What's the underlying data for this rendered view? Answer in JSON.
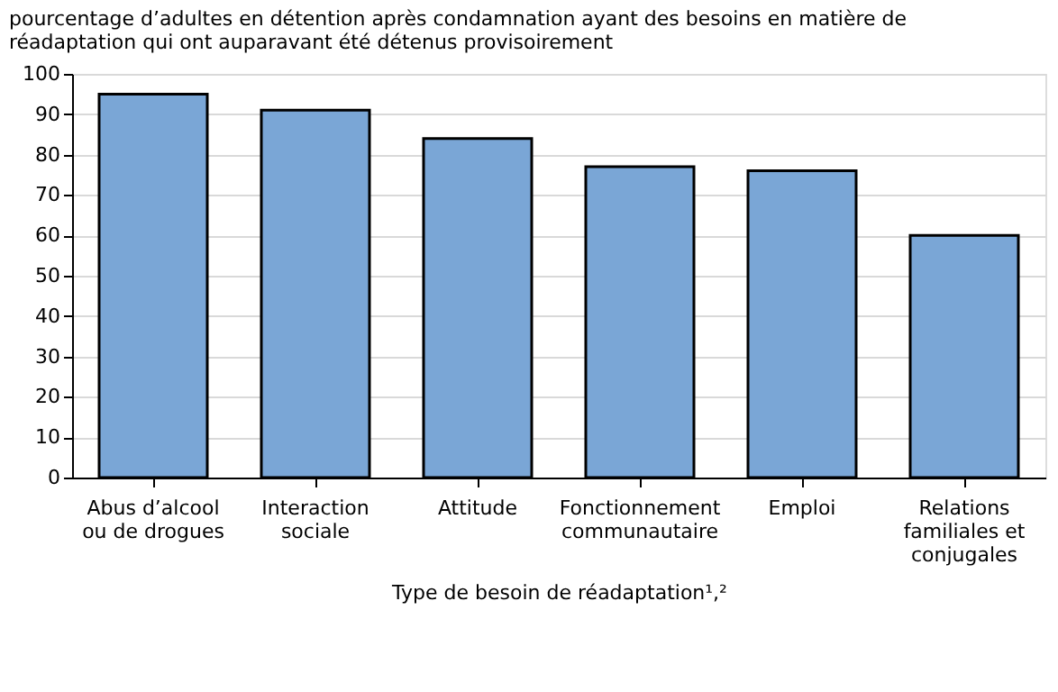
{
  "chart_data": {
    "type": "bar",
    "title": "pourcentage d’adultes en détention après condamnation ayant des besoins en matière de réadaptation qui ont auparavant été détenus provisoirement",
    "xlabel": "Type de besoin de réadaptation¹,²",
    "categories": [
      "Abus d’alcool ou de drogues",
      "Interaction sociale",
      "Attitude",
      "Fonctionnement communautaire",
      "Emploi",
      "Relations familiales et conjugales"
    ],
    "values": [
      95,
      91,
      84,
      77,
      76,
      60
    ],
    "color": "#7aa6d6",
    "ylim": [
      0,
      100
    ],
    "yticks": [
      0,
      10,
      20,
      30,
      40,
      50,
      60,
      70,
      80,
      90,
      100
    ],
    "grid": "y"
  }
}
